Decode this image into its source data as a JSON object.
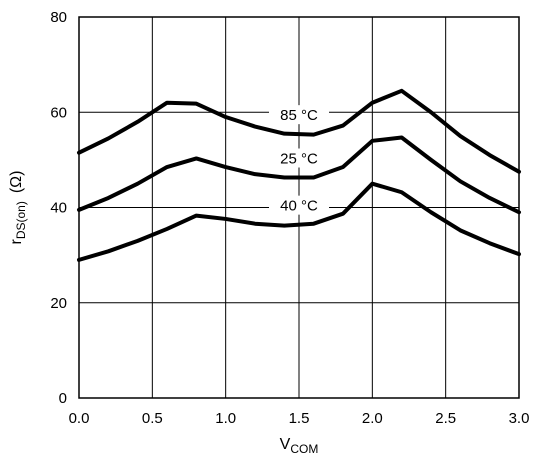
{
  "chart_data": {
    "type": "line",
    "title": "",
    "xlabel": {
      "main": "V",
      "sub": "COM"
    },
    "ylabel": {
      "main": "r",
      "sub": "DS(on)",
      "unit": "(Ω)"
    },
    "xlim": [
      0,
      3
    ],
    "ylim": [
      0,
      80
    ],
    "x_ticks": [
      "0.0",
      "0.5",
      "1.0",
      "1.5",
      "2.0",
      "2.5",
      "3.0"
    ],
    "y_ticks": [
      "0",
      "20",
      "40",
      "60",
      "80"
    ],
    "grid": true,
    "series": [
      {
        "name": "85 °C",
        "color": "#000000",
        "x": [
          0,
          0.2,
          0.4,
          0.6,
          0.8,
          1.0,
          1.2,
          1.4,
          1.6,
          1.8,
          2.0,
          2.2,
          2.4,
          2.6,
          2.8,
          3.0
        ],
        "y": [
          51.5,
          54.5,
          58,
          62,
          61.8,
          59,
          57,
          55.5,
          55.3,
          57.2,
          62,
          64.5,
          60,
          55,
          51,
          47.5
        ]
      },
      {
        "name": "25 °C",
        "color": "#000000",
        "x": [
          0,
          0.2,
          0.4,
          0.6,
          0.8,
          1.0,
          1.2,
          1.4,
          1.6,
          1.8,
          2.0,
          2.2,
          2.4,
          2.6,
          2.8,
          3.0
        ],
        "y": [
          39.5,
          42,
          45,
          48.5,
          50.3,
          48.5,
          47,
          46.3,
          46.3,
          48.5,
          54,
          54.7,
          50,
          45.5,
          42,
          39
        ]
      },
      {
        "name": "40 °C",
        "color": "#000000",
        "x": [
          0,
          0.2,
          0.4,
          0.6,
          0.8,
          1.0,
          1.2,
          1.4,
          1.6,
          1.8,
          2.0,
          2.2,
          2.4,
          2.6,
          2.8,
          3.0
        ],
        "y": [
          29,
          30.8,
          33,
          35.5,
          38.3,
          37.6,
          36.6,
          36.2,
          36.6,
          38.7,
          45,
          43.2,
          39,
          35.2,
          32.5,
          30.2
        ]
      }
    ]
  }
}
